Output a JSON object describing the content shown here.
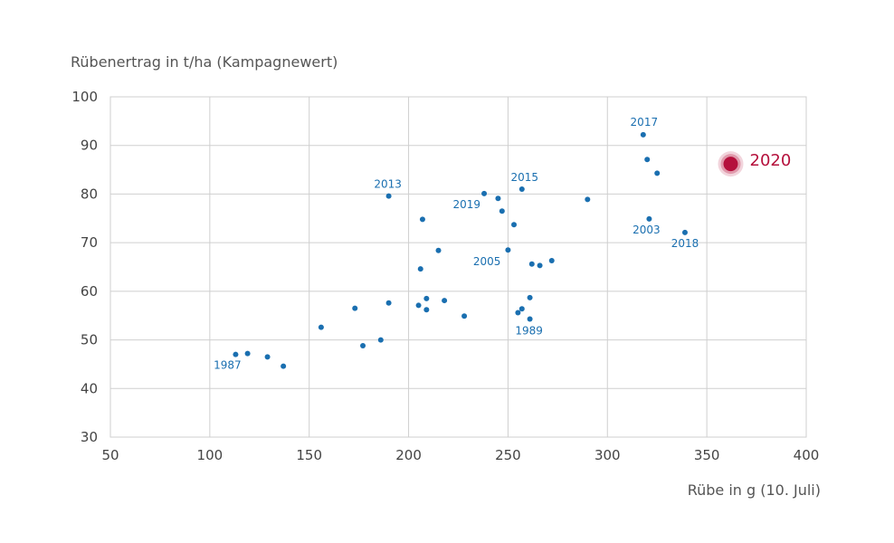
{
  "chart_data": {
    "type": "scatter",
    "ylabel": "Rübenertrag in t/ha (Kampagnewert)",
    "xlabel": "Rübe in g (10. Juli)",
    "xlim": [
      50,
      400
    ],
    "ylim": [
      30,
      100
    ],
    "x_ticks": [
      50,
      100,
      150,
      200,
      250,
      300,
      350,
      400
    ],
    "y_ticks": [
      30,
      40,
      50,
      60,
      70,
      80,
      90,
      100
    ],
    "grid": true,
    "point_color": "#1a6fb0",
    "highlight_color": "#b5103c",
    "points": [
      {
        "x": 113,
        "y": 47.0,
        "label": "1987"
      },
      {
        "x": 119,
        "y": 47.2,
        "label": ""
      },
      {
        "x": 129,
        "y": 46.5,
        "label": ""
      },
      {
        "x": 137,
        "y": 44.6,
        "label": ""
      },
      {
        "x": 156,
        "y": 52.6,
        "label": ""
      },
      {
        "x": 173,
        "y": 56.5,
        "label": ""
      },
      {
        "x": 177,
        "y": 48.8,
        "label": ""
      },
      {
        "x": 186,
        "y": 50.0,
        "label": ""
      },
      {
        "x": 190,
        "y": 79.6,
        "label": "2013"
      },
      {
        "x": 190,
        "y": 57.6,
        "label": ""
      },
      {
        "x": 205,
        "y": 57.1,
        "label": ""
      },
      {
        "x": 206,
        "y": 64.6,
        "label": ""
      },
      {
        "x": 207,
        "y": 74.8,
        "label": ""
      },
      {
        "x": 209,
        "y": 58.5,
        "label": ""
      },
      {
        "x": 209,
        "y": 56.2,
        "label": ""
      },
      {
        "x": 215,
        "y": 68.4,
        "label": ""
      },
      {
        "x": 218,
        "y": 58.1,
        "label": ""
      },
      {
        "x": 228,
        "y": 54.9,
        "label": ""
      },
      {
        "x": 238,
        "y": 80.1,
        "label": "2019"
      },
      {
        "x": 245,
        "y": 79.1,
        "label": ""
      },
      {
        "x": 247,
        "y": 76.5,
        "label": ""
      },
      {
        "x": 250,
        "y": 68.5,
        "label": "2005"
      },
      {
        "x": 253,
        "y": 73.7,
        "label": ""
      },
      {
        "x": 255,
        "y": 55.6,
        "label": ""
      },
      {
        "x": 257,
        "y": 81.0,
        "label": "2015"
      },
      {
        "x": 257,
        "y": 56.4,
        "label": ""
      },
      {
        "x": 261,
        "y": 58.7,
        "label": ""
      },
      {
        "x": 261,
        "y": 54.3,
        "label": "1989"
      },
      {
        "x": 262,
        "y": 65.6,
        "label": ""
      },
      {
        "x": 266,
        "y": 65.3,
        "label": ""
      },
      {
        "x": 272,
        "y": 66.3,
        "label": ""
      },
      {
        "x": 290,
        "y": 78.9,
        "label": ""
      },
      {
        "x": 318,
        "y": 92.2,
        "label": "2017"
      },
      {
        "x": 320,
        "y": 87.1,
        "label": ""
      },
      {
        "x": 321,
        "y": 74.9,
        "label": "2003"
      },
      {
        "x": 325,
        "y": 84.3,
        "label": ""
      },
      {
        "x": 339,
        "y": 72.1,
        "label": "2018"
      }
    ],
    "highlight": {
      "x": 362,
      "y": 86.2,
      "label": "2020"
    }
  }
}
